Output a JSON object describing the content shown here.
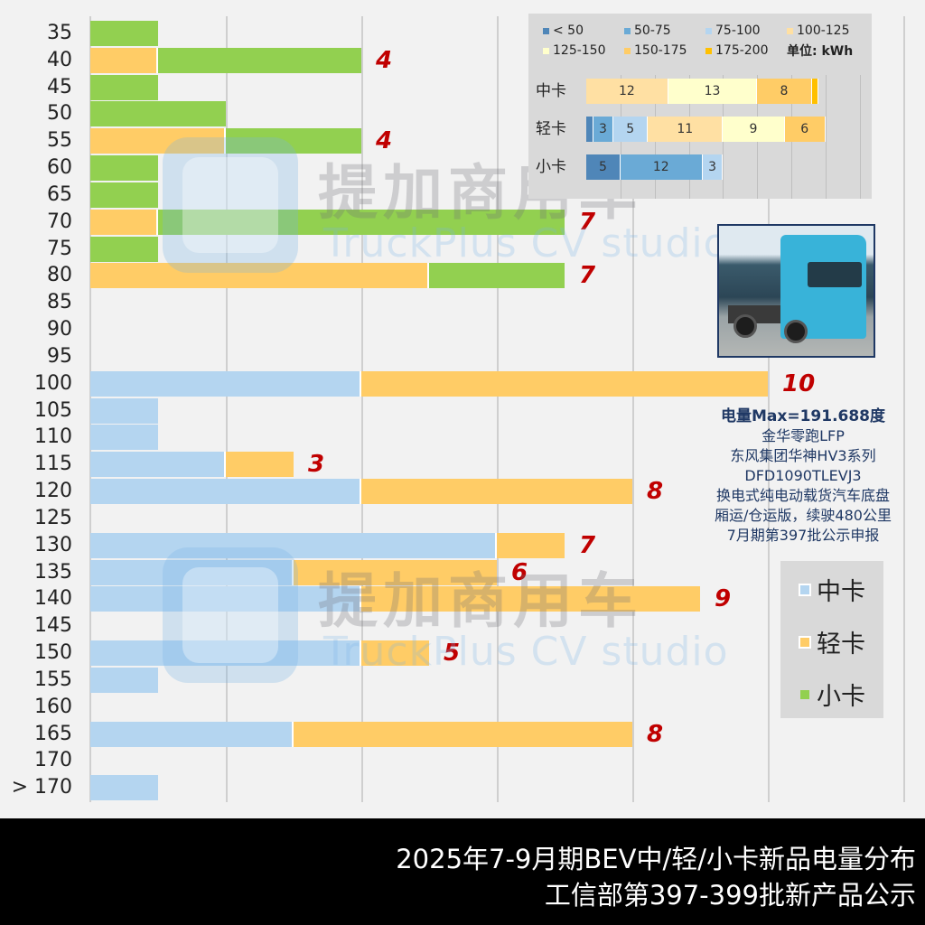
{
  "chart_data": {
    "type": "bar",
    "orientation": "horizontal",
    "stacked": true,
    "title": "2025年7-9月期BEV中/轻/小卡新品电量分布",
    "subtitle": "工信部第397-399批新产品公示",
    "xlabel": "",
    "ylabel": "",
    "xlim": [
      0,
      12
    ],
    "grid": true,
    "legend_position": "right-bottom",
    "categories": [
      "35",
      "40",
      "45",
      "50",
      "55",
      "60",
      "65",
      "70",
      "75",
      "80",
      "85",
      "90",
      "95",
      "100",
      "105",
      "110",
      "115",
      "120",
      "125",
      "130",
      "135",
      "140",
      "145",
      "150",
      "155",
      "160",
      "165",
      "170",
      "> 170"
    ],
    "series": [
      {
        "name": "中卡",
        "color": "#b4d5f0",
        "values": [
          0,
          0,
          0,
          0,
          0,
          0,
          0,
          0,
          0,
          0,
          0,
          0,
          0,
          4,
          1,
          1,
          2,
          4,
          0,
          6,
          3,
          4,
          0,
          4,
          1,
          0,
          3,
          0,
          1
        ]
      },
      {
        "name": "轻卡",
        "color": "#ffcc66",
        "values": [
          0,
          1,
          0,
          0,
          2,
          0,
          0,
          1,
          0,
          5,
          0,
          0,
          0,
          6,
          0,
          0,
          1,
          4,
          0,
          1,
          3,
          5,
          0,
          1,
          0,
          0,
          5,
          0,
          0
        ]
      },
      {
        "name": "小卡",
        "color": "#92d050",
        "values": [
          1,
          3,
          1,
          2,
          2,
          1,
          1,
          6,
          1,
          2,
          0,
          0,
          0,
          0,
          0,
          0,
          0,
          0,
          0,
          0,
          0,
          0,
          0,
          0,
          0,
          0,
          0,
          0,
          0
        ]
      }
    ],
    "annotations": [
      {
        "category": "40",
        "total": "4"
      },
      {
        "category": "55",
        "total": "4"
      },
      {
        "category": "70",
        "total": "7"
      },
      {
        "category": "80",
        "total": "7"
      },
      {
        "category": "100",
        "total": "10"
      },
      {
        "category": "115",
        "total": "3"
      },
      {
        "category": "120",
        "total": "8"
      },
      {
        "category": "130",
        "total": "7"
      },
      {
        "category": "135",
        "total": "6"
      },
      {
        "category": "140",
        "total": "9"
      },
      {
        "category": "150",
        "total": "5"
      },
      {
        "category": "165",
        "total": "8"
      }
    ],
    "inset": {
      "type": "bar",
      "stacked": true,
      "unit": "单位: kWh",
      "bins": [
        "< 50",
        "50-75",
        "75-100",
        "100-125",
        "125-150",
        "150-175",
        "175-200"
      ],
      "bin_colors": [
        "#4f86b8",
        "#6aaad6",
        "#b4d5f0",
        "#ffe0a3",
        "#ffffcc",
        "#ffcc66",
        "#ffc000"
      ],
      "rows": [
        {
          "name": "中卡",
          "values": [
            0,
            0,
            0,
            12,
            13,
            8,
            1
          ]
        },
        {
          "name": "轻卡",
          "values": [
            1,
            3,
            5,
            11,
            9,
            6,
            0
          ]
        },
        {
          "name": "小卡",
          "values": [
            5,
            12,
            3,
            0,
            0,
            0,
            0
          ]
        }
      ]
    }
  },
  "inset_legend": {
    "items": [
      "< 50",
      "50-75",
      "75-100",
      "100-125",
      "125-150",
      "150-175",
      "175-200"
    ],
    "unit_label": "单位: kWh"
  },
  "inset_rows": [
    {
      "name": "中卡",
      "segments": [
        {
          "label": "12",
          "bin": 3,
          "value": 12
        },
        {
          "label": "13",
          "bin": 4,
          "value": 13
        },
        {
          "label": "8",
          "bin": 5,
          "value": 8
        },
        {
          "label": "",
          "bin": 6,
          "value": 1
        }
      ]
    },
    {
      "name": "轻卡",
      "segments": [
        {
          "label": "",
          "bin": 0,
          "value": 1
        },
        {
          "label": "3",
          "bin": 1,
          "value": 3
        },
        {
          "label": "5",
          "bin": 2,
          "value": 5
        },
        {
          "label": "11",
          "bin": 3,
          "value": 11
        },
        {
          "label": "9",
          "bin": 4,
          "value": 9
        },
        {
          "label": "6",
          "bin": 5,
          "value": 6
        }
      ]
    },
    {
      "name": "小卡",
      "segments": [
        {
          "label": "5",
          "bin": 0,
          "value": 5
        },
        {
          "label": "12",
          "bin": 1,
          "value": 12
        },
        {
          "label": "3",
          "bin": 2,
          "value": 3
        }
      ]
    }
  ],
  "caption": {
    "title": "电量Max=191.688度",
    "lines": [
      "金华零跑LFP",
      "东风集团华神HV3系列",
      "DFD1090TLEVJ3",
      "换电式纯电动载货汽车底盘",
      "厢运/仓运版，续驶480公里",
      "7月期第397批公示申报"
    ]
  },
  "legend": {
    "items": [
      {
        "label": "中卡",
        "color": "#b4d5f0"
      },
      {
        "label": "轻卡",
        "color": "#ffcc66"
      },
      {
        "label": "小卡",
        "color": "#92d050"
      }
    ]
  },
  "watermark": {
    "cn": "提加商用车",
    "en": "TruckPlus CV studio"
  },
  "footer": {
    "line1": "2025年7-9月期BEV中/轻/小卡新品电量分布",
    "line2": "工信部第397-399批新产品公示"
  }
}
